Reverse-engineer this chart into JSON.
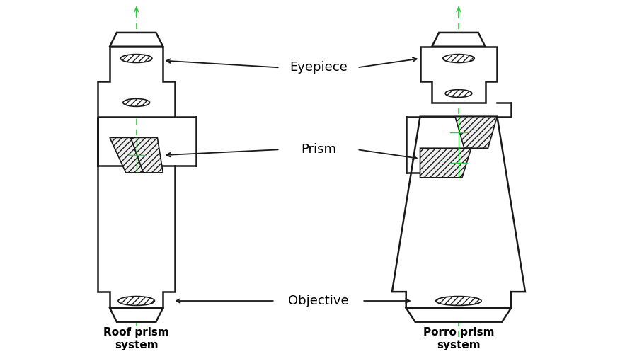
{
  "bg_color": "#ffffff",
  "line_color": "#1a1a1a",
  "hatch_color": "#555555",
  "green_color": "#2ecc40",
  "title_left": "Roof prism\nsystem",
  "title_right": "Porro prism\nsystem",
  "label_eyepiece": "Eyepiece",
  "label_prism": "Prism",
  "label_objective": "Objective",
  "figsize": [
    9.0,
    5.0
  ],
  "dpi": 100
}
